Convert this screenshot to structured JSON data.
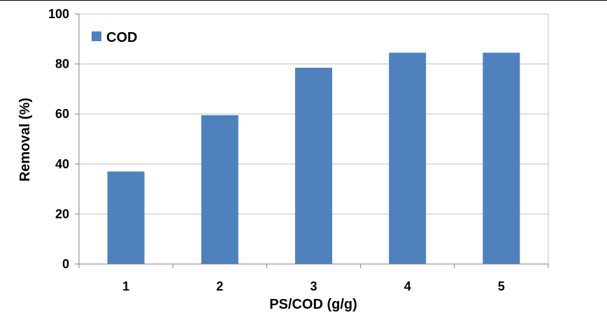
{
  "chart_data": {
    "type": "bar",
    "categories": [
      "1",
      "2",
      "3",
      "4",
      "5"
    ],
    "series": [
      {
        "name": "COD",
        "values": [
          37,
          59.5,
          78.5,
          84.5,
          84.5
        ],
        "color": "#4F81BD"
      }
    ],
    "xlabel": "PS/COD (g/g)",
    "ylabel": "Removal (%)",
    "ylim": [
      0,
      100
    ],
    "yticks": [
      "0",
      "20",
      "40",
      "60",
      "80",
      "100"
    ],
    "grid": true,
    "legend_position": "top-left",
    "colors": {
      "bar": "#4F81BD",
      "grid": "#bfbfbf",
      "axis": "#808080"
    }
  }
}
